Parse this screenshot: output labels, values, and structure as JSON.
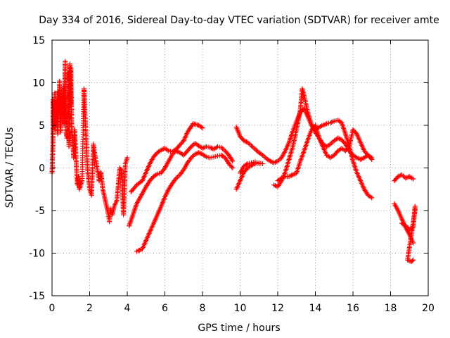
{
  "chart_data": {
    "type": "scatter",
    "title": "Day 334 of 2016, Sidereal Day-to-day VTEC variation (SDTVAR) for receiver amte",
    "xlabel": "GPS time / hours",
    "ylabel": "SDTVAR / TECUs",
    "xlim": [
      0,
      20
    ],
    "ylim": [
      -15,
      15
    ],
    "xticks": [
      "0",
      "2",
      "4",
      "6",
      "8",
      "10",
      "12",
      "14",
      "16",
      "18",
      "20"
    ],
    "yticks": [
      "15",
      "10",
      "5",
      "0",
      "-5",
      "-10",
      "-15"
    ],
    "grid": true,
    "legend": "none",
    "marker": "plus",
    "color": "#ff0000",
    "series": [
      {
        "name": "early-scatter",
        "points": [
          [
            0.0,
            -0.6
          ],
          [
            0.05,
            3.0
          ],
          [
            0.05,
            8.0
          ],
          [
            0.1,
            7.5
          ],
          [
            0.15,
            4.5
          ],
          [
            0.15,
            8.8
          ],
          [
            0.2,
            5.0
          ],
          [
            0.25,
            7.8
          ],
          [
            0.3,
            4.0
          ],
          [
            0.3,
            9.0
          ],
          [
            0.35,
            6.5
          ],
          [
            0.4,
            8.5
          ],
          [
            0.4,
            10.2
          ],
          [
            0.45,
            4.2
          ],
          [
            0.5,
            7.2
          ],
          [
            0.5,
            8.8
          ],
          [
            0.55,
            6.0
          ],
          [
            0.6,
            9.5
          ],
          [
            0.65,
            5.2
          ],
          [
            0.7,
            12.5
          ],
          [
            0.7,
            8.0
          ],
          [
            0.75,
            4.0
          ],
          [
            0.8,
            3.5
          ],
          [
            0.85,
            6.5
          ],
          [
            0.9,
            11.3
          ],
          [
            0.9,
            2.5
          ],
          [
            0.95,
            12.2
          ],
          [
            1.0,
            7.5
          ],
          [
            1.0,
            11.7
          ],
          [
            1.05,
            4.5
          ],
          [
            1.1,
            3.0
          ],
          [
            1.15,
            1.2
          ],
          [
            1.2,
            4.5
          ],
          [
            1.25,
            2.2
          ],
          [
            1.3,
            0.0
          ],
          [
            1.35,
            -2.0
          ],
          [
            1.4,
            -1.0
          ],
          [
            1.45,
            -2.5
          ],
          [
            1.6,
            -1.5
          ],
          [
            1.7,
            9.3
          ],
          [
            1.75,
            6.5
          ],
          [
            1.8,
            4.0
          ],
          [
            1.85,
            1.5
          ],
          [
            1.9,
            -0.5
          ],
          [
            2.0,
            -2.5
          ],
          [
            2.1,
            -3.2
          ],
          [
            2.2,
            2.8
          ],
          [
            2.25,
            2.0
          ],
          [
            2.5,
            -1.5
          ],
          [
            2.6,
            -0.5
          ],
          [
            2.7,
            -2.5
          ],
          [
            2.8,
            -3.5
          ],
          [
            2.9,
            -4.5
          ],
          [
            3.0,
            -5.5
          ],
          [
            3.05,
            -6.3
          ],
          [
            3.1,
            -4.8
          ],
          [
            3.2,
            -5.5
          ],
          [
            3.3,
            -4.5
          ],
          [
            3.45,
            -3.8
          ],
          [
            3.6,
            0.0
          ],
          [
            3.7,
            -0.3
          ],
          [
            3.8,
            -5.5
          ],
          [
            3.9,
            0.5
          ],
          [
            4.0,
            1.2
          ]
        ]
      },
      {
        "name": "track-a",
        "points": [
          [
            4.2,
            -2.8
          ],
          [
            4.5,
            -2.0
          ],
          [
            4.8,
            -1.5
          ],
          [
            5.0,
            -0.5
          ],
          [
            5.2,
            0.5
          ],
          [
            5.4,
            1.3
          ],
          [
            5.6,
            1.8
          ],
          [
            5.8,
            2.1
          ],
          [
            6.0,
            2.3
          ],
          [
            6.2,
            2.0
          ],
          [
            6.4,
            1.9
          ],
          [
            6.6,
            2.2
          ],
          [
            6.8,
            2.7
          ],
          [
            7.0,
            3.2
          ],
          [
            7.2,
            4.2
          ],
          [
            7.5,
            5.2
          ],
          [
            7.8,
            5.0
          ],
          [
            8.0,
            4.7
          ]
        ]
      },
      {
        "name": "track-b",
        "points": [
          [
            4.1,
            -6.8
          ],
          [
            4.3,
            -5.5
          ],
          [
            4.5,
            -4.2
          ],
          [
            4.8,
            -3.0
          ],
          [
            5.0,
            -2.2
          ],
          [
            5.2,
            -1.5
          ],
          [
            5.4,
            -1.0
          ],
          [
            5.6,
            -0.7
          ],
          [
            5.8,
            -0.6
          ],
          [
            6.0,
            0.0
          ],
          [
            6.2,
            0.8
          ],
          [
            6.4,
            1.6
          ],
          [
            6.6,
            2.0
          ],
          [
            6.8,
            1.8
          ],
          [
            7.0,
            1.5
          ],
          [
            7.2,
            2.0
          ],
          [
            7.4,
            2.5
          ],
          [
            7.6,
            2.9
          ],
          [
            7.8,
            2.6
          ],
          [
            8.0,
            2.3
          ],
          [
            8.2,
            2.5
          ],
          [
            8.4,
            2.4
          ],
          [
            8.6,
            2.2
          ],
          [
            8.8,
            2.5
          ],
          [
            9.0,
            2.4
          ],
          [
            9.2,
            2.0
          ],
          [
            9.4,
            1.5
          ],
          [
            9.6,
            0.8
          ]
        ]
      },
      {
        "name": "track-c",
        "points": [
          [
            4.5,
            -9.8
          ],
          [
            4.8,
            -9.5
          ],
          [
            5.0,
            -8.5
          ],
          [
            5.2,
            -7.5
          ],
          [
            5.4,
            -6.5
          ],
          [
            5.6,
            -5.5
          ],
          [
            5.8,
            -4.5
          ],
          [
            6.0,
            -3.4
          ],
          [
            6.2,
            -2.5
          ],
          [
            6.4,
            -1.8
          ],
          [
            6.6,
            -1.2
          ],
          [
            6.8,
            -0.8
          ],
          [
            7.0,
            -0.2
          ],
          [
            7.2,
            0.6
          ],
          [
            7.4,
            1.2
          ],
          [
            7.6,
            1.6
          ],
          [
            7.8,
            1.8
          ],
          [
            8.0,
            1.6
          ],
          [
            8.2,
            1.3
          ],
          [
            8.4,
            1.2
          ],
          [
            8.6,
            1.3
          ],
          [
            8.8,
            1.4
          ],
          [
            9.0,
            1.5
          ],
          [
            9.2,
            1.2
          ],
          [
            9.4,
            0.5
          ],
          [
            9.6,
            0.0
          ]
        ]
      },
      {
        "name": "track-d",
        "points": [
          [
            9.8,
            -2.5
          ],
          [
            10.0,
            -1.5
          ],
          [
            10.2,
            -0.5
          ],
          [
            10.4,
            0.0
          ],
          [
            10.6,
            0.3
          ],
          [
            10.8,
            0.5
          ],
          [
            11.0,
            0.5
          ]
        ]
      },
      {
        "name": "track-e",
        "points": [
          [
            10.0,
            -0.6
          ],
          [
            10.2,
            0.2
          ],
          [
            10.4,
            0.5
          ],
          [
            10.6,
            0.6
          ],
          [
            10.8,
            0.7
          ],
          [
            11.0,
            0.6
          ],
          [
            11.2,
            0.5
          ]
        ]
      },
      {
        "name": "track-f",
        "points": [
          [
            9.8,
            4.8
          ],
          [
            10.0,
            3.7
          ],
          [
            10.2,
            3.2
          ],
          [
            10.4,
            3.0
          ],
          [
            10.6,
            2.6
          ],
          [
            10.8,
            2.2
          ],
          [
            11.0,
            1.8
          ],
          [
            11.2,
            1.5
          ],
          [
            11.4,
            1.1
          ],
          [
            11.6,
            0.8
          ],
          [
            11.8,
            0.6
          ],
          [
            12.0,
            0.8
          ],
          [
            12.2,
            1.2
          ],
          [
            12.4,
            2.0
          ],
          [
            12.6,
            3.0
          ],
          [
            12.8,
            4.3
          ],
          [
            13.0,
            5.5
          ],
          [
            13.2,
            6.5
          ],
          [
            13.4,
            7.0
          ],
          [
            13.6,
            6.0
          ],
          [
            13.8,
            5.0
          ],
          [
            14.0,
            4.5
          ],
          [
            14.2,
            4.8
          ],
          [
            14.4,
            5.0
          ],
          [
            14.6,
            5.2
          ],
          [
            14.8,
            5.3
          ],
          [
            15.0,
            5.5
          ],
          [
            15.2,
            5.6
          ],
          [
            15.4,
            5.3
          ],
          [
            15.6,
            4.0
          ],
          [
            15.8,
            2.5
          ],
          [
            16.0,
            0.8
          ],
          [
            16.2,
            -0.5
          ],
          [
            16.4,
            -1.5
          ],
          [
            16.6,
            -2.5
          ],
          [
            16.8,
            -3.2
          ],
          [
            17.0,
            -3.5
          ]
        ]
      },
      {
        "name": "track-g",
        "points": [
          [
            11.8,
            -2.0
          ],
          [
            12.0,
            -2.2
          ],
          [
            12.2,
            -1.5
          ],
          [
            12.4,
            -0.5
          ],
          [
            12.6,
            1.0
          ],
          [
            12.8,
            2.5
          ],
          [
            13.0,
            4.5
          ],
          [
            13.2,
            6.8
          ],
          [
            13.3,
            9.3
          ],
          [
            13.4,
            8.5
          ],
          [
            13.6,
            6.5
          ],
          [
            13.8,
            5.0
          ],
          [
            14.0,
            4.2
          ],
          [
            14.2,
            3.5
          ],
          [
            14.4,
            2.8
          ],
          [
            14.6,
            2.5
          ],
          [
            14.8,
            2.8
          ],
          [
            15.0,
            3.2
          ],
          [
            15.2,
            3.5
          ],
          [
            15.4,
            3.3
          ],
          [
            15.6,
            2.8
          ],
          [
            15.8,
            2.0
          ],
          [
            16.0,
            1.5
          ],
          [
            16.2,
            1.2
          ],
          [
            16.4,
            1.0
          ],
          [
            16.6,
            1.2
          ],
          [
            16.8,
            1.5
          ],
          [
            17.0,
            1.0
          ]
        ]
      },
      {
        "name": "track-h",
        "points": [
          [
            12.0,
            -1.5
          ],
          [
            12.2,
            -1.2
          ],
          [
            12.4,
            -1.0
          ],
          [
            12.6,
            -1.0
          ],
          [
            12.8,
            -0.8
          ],
          [
            13.0,
            -0.6
          ],
          [
            13.2,
            0.8
          ],
          [
            13.4,
            2.0
          ],
          [
            13.6,
            3.3
          ],
          [
            13.8,
            4.5
          ],
          [
            14.0,
            5.0
          ],
          [
            14.2,
            3.5
          ],
          [
            14.4,
            2.5
          ],
          [
            14.6,
            1.5
          ],
          [
            14.8,
            1.2
          ],
          [
            15.0,
            1.5
          ],
          [
            15.2,
            2.0
          ],
          [
            15.4,
            2.3
          ],
          [
            15.6,
            2.0
          ],
          [
            15.8,
            2.5
          ],
          [
            16.0,
            4.5
          ],
          [
            16.2,
            4.0
          ],
          [
            16.4,
            3.0
          ],
          [
            16.6,
            2.0
          ],
          [
            16.8,
            1.5
          ],
          [
            17.0,
            1.2
          ]
        ]
      },
      {
        "name": "track-i",
        "points": [
          [
            18.2,
            -1.5
          ],
          [
            18.4,
            -1.0
          ],
          [
            18.6,
            -0.8
          ],
          [
            18.8,
            -1.2
          ],
          [
            19.0,
            -1.0
          ],
          [
            19.2,
            -1.3
          ]
        ]
      },
      {
        "name": "track-j",
        "points": [
          [
            18.2,
            -4.2
          ],
          [
            18.4,
            -5.0
          ],
          [
            18.6,
            -6.0
          ],
          [
            18.8,
            -7.0
          ],
          [
            19.0,
            -7.8
          ],
          [
            19.2,
            -8.8
          ]
        ]
      },
      {
        "name": "track-k",
        "points": [
          [
            18.6,
            -6.5
          ],
          [
            18.8,
            -6.8
          ],
          [
            19.0,
            -7.2
          ],
          [
            19.2,
            -7.0
          ],
          [
            19.3,
            -4.5
          ],
          [
            19.3,
            -5.0
          ],
          [
            18.9,
            -10.8
          ],
          [
            19.1,
            -11.0
          ],
          [
            19.2,
            -10.8
          ]
        ]
      }
    ]
  }
}
